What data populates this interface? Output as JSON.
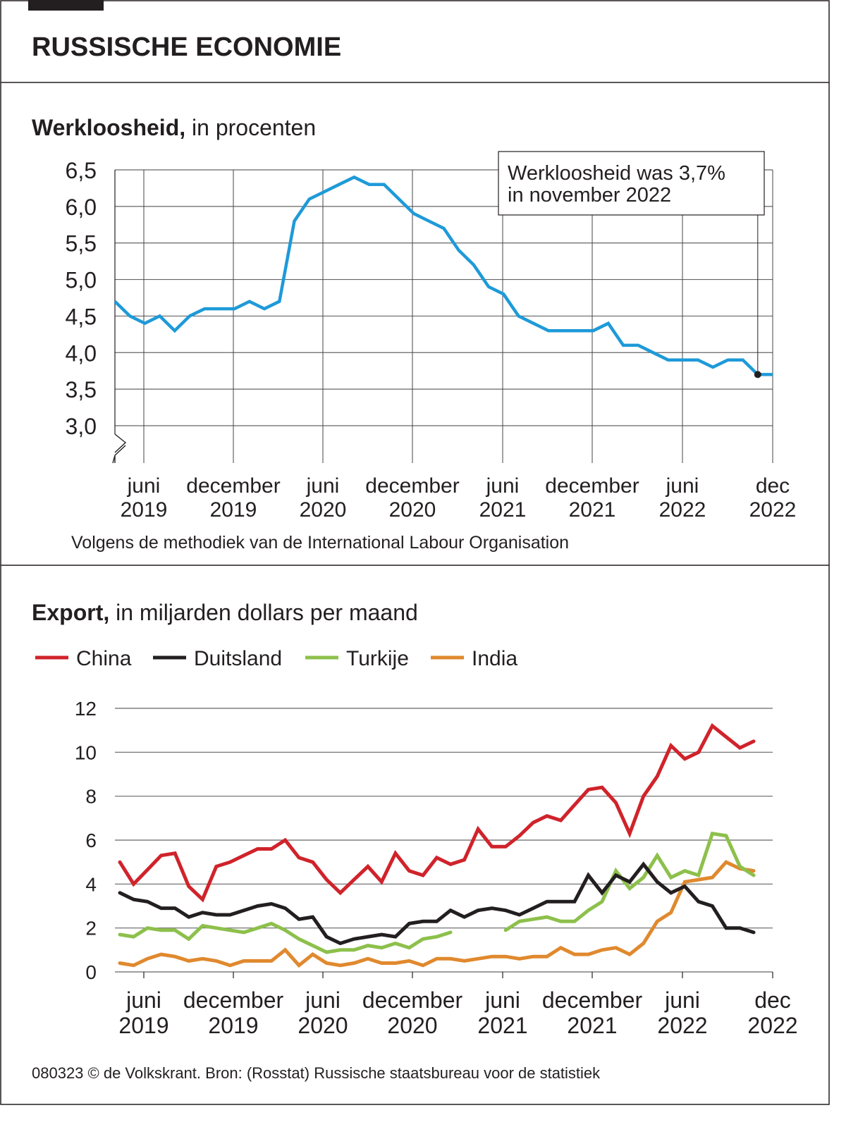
{
  "header": {
    "title": "RUSSISCHE ECONOMIE"
  },
  "chart1": {
    "title_bold": "Werkloosheid,",
    "title_rest": " in procenten",
    "annotation_line1": "Werkloosheid was 3,7%",
    "annotation_line2": "in november 2022",
    "caption": "Volgens de methodiek van de International Labour Organisation"
  },
  "chart2": {
    "title_bold": "Export,",
    "title_rest": " in miljarden dollars per maand"
  },
  "footer": {
    "credit": "080323 © de Volkskrant. Bron: (Rosstat) Russische staatsbureau voor de statistiek"
  },
  "chart_data": [
    {
      "type": "line",
      "title": "Werkloosheid, in procenten",
      "ylabel": "procent",
      "ylim": [
        3.0,
        6.5
      ],
      "yticks": [
        "6,5",
        "6,0",
        "5,5",
        "5,0",
        "4,5",
        "4,0",
        "3,5",
        "3,0"
      ],
      "ytick_values": [
        6.5,
        6.0,
        5.5,
        5.0,
        4.5,
        4.0,
        3.5,
        3.0
      ],
      "xticks": [
        [
          "juni",
          "2019"
        ],
        [
          "december",
          "2019"
        ],
        [
          "juni",
          "2020"
        ],
        [
          "december",
          "2020"
        ],
        [
          "juni",
          "2021"
        ],
        [
          "december",
          "2021"
        ],
        [
          "juni",
          "2022"
        ],
        [
          "dec",
          "2022"
        ]
      ],
      "x_start": "2019-04",
      "x_end": "2022-12",
      "grid": true,
      "highlight": {
        "month": "2022-11",
        "value": 3.7
      },
      "series": [
        {
          "name": "Werkloosheid",
          "color": "#1e9ad8",
          "values": [
            4.7,
            4.5,
            4.4,
            4.5,
            4.3,
            4.5,
            4.6,
            4.6,
            4.6,
            4.7,
            4.6,
            4.7,
            5.8,
            6.1,
            6.2,
            6.3,
            6.4,
            6.3,
            6.3,
            6.1,
            5.9,
            5.8,
            5.7,
            5.4,
            5.2,
            4.9,
            4.8,
            4.5,
            4.4,
            4.3,
            4.3,
            4.3,
            4.3,
            4.4,
            4.1,
            4.1,
            4.0,
            3.9,
            3.9,
            3.9,
            3.8,
            3.9,
            3.9,
            3.7,
            3.7
          ]
        }
      ]
    },
    {
      "type": "line",
      "title": "Export, in miljarden dollars per maand",
      "ylabel": "miljarden dollars",
      "ylim": [
        0,
        12
      ],
      "yticks": [
        "12",
        "10",
        "8",
        "6",
        "4",
        "2",
        "0"
      ],
      "ytick_values": [
        12,
        10,
        8,
        6,
        4,
        2,
        0
      ],
      "xticks": [
        [
          "juni",
          "2019"
        ],
        [
          "december",
          "2019"
        ],
        [
          "juni",
          "2020"
        ],
        [
          "december",
          "2020"
        ],
        [
          "juni",
          "2021"
        ],
        [
          "december",
          "2021"
        ],
        [
          "juni",
          "2022"
        ],
        [
          "dec",
          "2022"
        ]
      ],
      "grid": true,
      "legend": "top-left",
      "series": [
        {
          "name": "China",
          "color": "#d0232b",
          "values": [
            5.0,
            4.0,
            4.65,
            5.3,
            5.4,
            3.9,
            3.3,
            4.8,
            5.0,
            5.3,
            5.6,
            5.6,
            6.0,
            5.2,
            5.0,
            4.2,
            3.6,
            4.2,
            4.8,
            4.1,
            5.4,
            4.6,
            4.4,
            5.2,
            4.9,
            5.1,
            6.5,
            5.7,
            5.7,
            6.2,
            6.8,
            7.1,
            6.9,
            7.6,
            8.3,
            8.4,
            7.7,
            6.3,
            8.0,
            8.9,
            10.3,
            9.7,
            10.0,
            11.2,
            10.7,
            10.2,
            10.5
          ]
        },
        {
          "name": "Duitsland",
          "color": "#231f20",
          "values": [
            3.6,
            3.3,
            3.2,
            2.9,
            2.9,
            2.5,
            2.7,
            2.6,
            2.6,
            2.8,
            3.0,
            3.1,
            2.9,
            2.4,
            2.5,
            1.6,
            1.3,
            1.5,
            1.6,
            1.7,
            1.6,
            2.2,
            2.3,
            2.3,
            2.8,
            2.5,
            2.8,
            2.9,
            2.8,
            2.6,
            2.9,
            3.2,
            3.2,
            3.2,
            4.4,
            3.6,
            4.4,
            4.1,
            4.9,
            4.1,
            3.6,
            3.9,
            3.2,
            3.0,
            2.0,
            2.0,
            1.8
          ]
        },
        {
          "name": "Turkije",
          "color": "#8dc04b",
          "values": [
            1.7,
            1.6,
            2.0,
            1.9,
            1.9,
            1.5,
            2.1,
            2.0,
            1.9,
            1.8,
            2.0,
            2.2,
            1.9,
            1.5,
            1.2,
            0.9,
            1.0,
            1.0,
            1.2,
            1.1,
            1.3,
            1.1,
            1.5,
            1.6,
            1.8,
            null,
            null,
            null,
            1.9,
            2.3,
            2.4,
            2.5,
            2.3,
            2.3,
            2.8,
            3.2,
            4.6,
            3.8,
            4.3,
            5.3,
            4.3,
            4.6,
            4.4,
            6.3,
            6.2,
            4.8,
            4.4
          ]
        },
        {
          "name": "India",
          "color": "#e0892e",
          "values": [
            0.4,
            0.3,
            0.6,
            0.8,
            0.7,
            0.5,
            0.6,
            0.5,
            0.3,
            0.5,
            0.5,
            0.5,
            1.0,
            0.3,
            0.8,
            0.4,
            0.3,
            0.4,
            0.6,
            0.4,
            0.4,
            0.5,
            0.3,
            0.6,
            0.6,
            0.5,
            0.6,
            0.7,
            0.7,
            0.6,
            0.7,
            0.7,
            1.1,
            0.8,
            0.8,
            1.0,
            1.1,
            0.8,
            1.3,
            2.3,
            2.7,
            4.1,
            4.2,
            4.3,
            5.0,
            4.7,
            4.6
          ]
        }
      ]
    }
  ]
}
